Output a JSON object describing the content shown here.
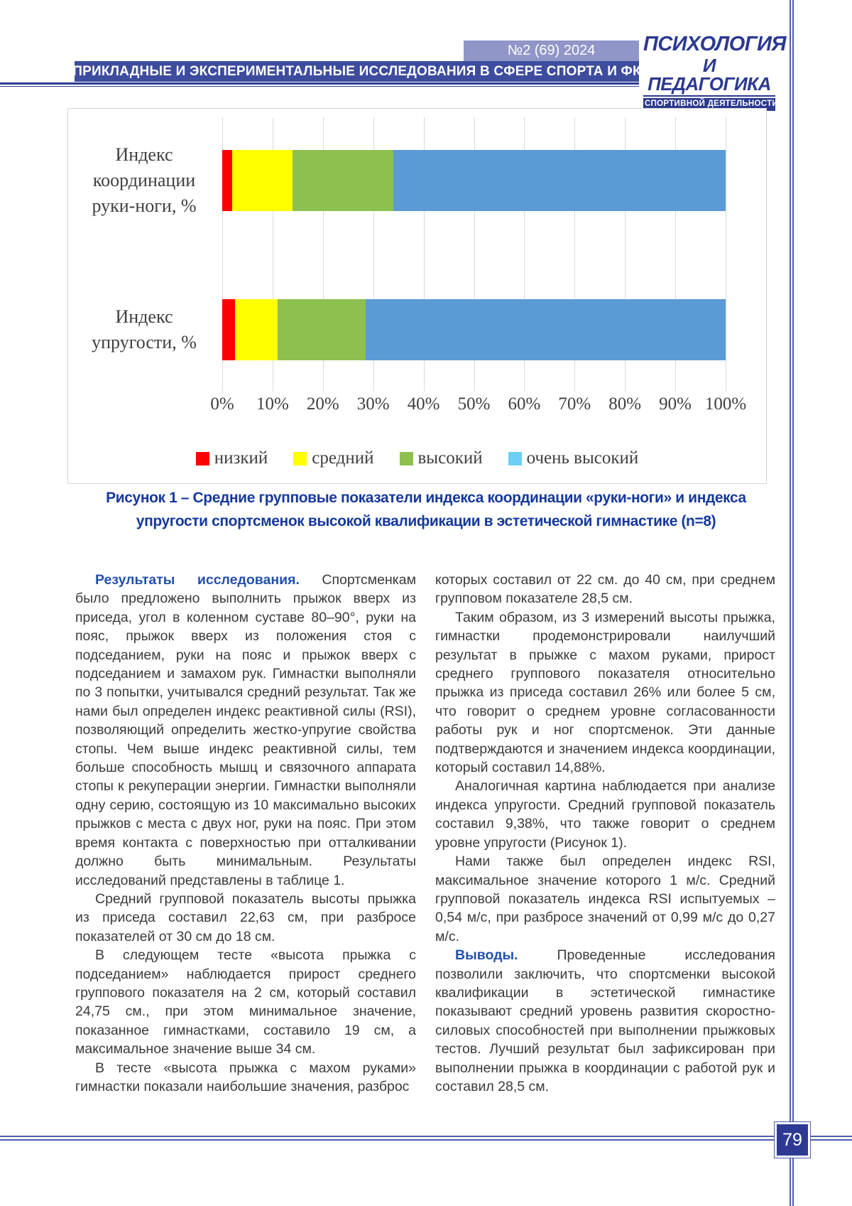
{
  "page": {
    "number": "79"
  },
  "header": {
    "issue": "№2 (69) 2024",
    "section_title": "ПРИКЛАДНЫЕ И ЭКСПЕРИМЕНТАЛЬНЫЕ ИССЛЕДОВАНИЯ В СФЕРЕ СПОРТА И ФК",
    "journal": {
      "line1": "ПСИХОЛОГИЯ",
      "line2": "И ПЕДАГОГИКА",
      "line3": "СПОРТИВНОЙ ДЕЯТЕЛЬНОСТИ"
    }
  },
  "figure": {
    "caption_line1": "Рисунок 1 – Средние групповые показатели индекса координации «руки-ноги» и индекса",
    "caption_line2": "упругости спортсменок высокой квалификации в эстетической гимнастике (n=8)"
  },
  "chart_data": {
    "type": "bar",
    "orientation": "horizontal",
    "stacked": true,
    "categories": [
      "Индекс координации руки-ноги, %",
      "Индекс упругости, %"
    ],
    "category_lines": [
      [
        "Индекс",
        "координации",
        "руки-ноги, %"
      ],
      [
        "Индекс",
        "упругости, %"
      ]
    ],
    "series": [
      {
        "name": "низкий",
        "color": "#ff0000",
        "values": [
          2,
          2.5
        ]
      },
      {
        "name": "средний",
        "color": "#ffff00",
        "values": [
          12,
          8.5
        ]
      },
      {
        "name": "высокий",
        "color": "#8dc04f",
        "values": [
          20,
          17.5
        ]
      },
      {
        "name": "очень высокий",
        "color": "#5b9bd5",
        "legend_color": "#6dcff6",
        "values": [
          66,
          71.5
        ]
      }
    ],
    "x_ticks": [
      "0%",
      "10%",
      "20%",
      "30%",
      "40%",
      "50%",
      "60%",
      "70%",
      "80%",
      "90%",
      "100%"
    ],
    "xlim": [
      0,
      100
    ],
    "grid": true,
    "legend_position": "bottom"
  },
  "article": {
    "columns": [
      {
        "paragraphs": [
          {
            "lead": "Результаты исследования.",
            "text": "Спортсменкам было предложено выполнить прыжок вверх из приседа, угол в коленном суставе 80–90°, руки на пояс, прыжок вверх из положения стоя с подседанием, руки на пояс и прыжок вверх с подседанием и замахом рук. Гимнастки выполняли по 3 попытки, учитывался средний результат. Так же нами был определен индекс реактивной силы (RSI), позволяющий определить жестко-упругие свойства стопы. Чем выше индекс реактивной силы, тем больше способность мышц и связочного аппарата стопы к рекуперации энергии. Гимнастки выполняли одну серию, состоящую из 10 максимально высоких прыжков с места с двух ног, руки на пояс. При этом время контакта с поверхностью при отталкивании должно быть минимальным. Результаты исследований представлены в таблице 1."
          },
          {
            "text": "Средний групповой показатель высоты прыжка из приседа составил 22,63 см, при разбросе показателей от 30 см до 18 см."
          },
          {
            "text": "В следующем тесте «высота прыжка с подседанием» наблюдается прирост среднего группового показателя на 2 см, который составил 24,75 см., при этом минимальное значение, показанное гимнастками, составило 19 см, а максимальное значение выше 34 см."
          },
          {
            "text": "В тесте «высота прыжка с махом руками» гимнастки показали наибольшие значения, разброс"
          }
        ]
      },
      {
        "paragraphs": [
          {
            "noindent": true,
            "text": "которых составил от 22 см. до 40 см, при среднем групповом показателе 28,5 см."
          },
          {
            "text": "Таким образом, из 3 измерений высоты прыжка, гимнастки продемонстрировали наилучший результат в прыжке с махом руками, прирост среднего группового показателя относительно прыжка из приседа составил 26% или более 5 см, что говорит о среднем уровне согласованности работы рук и ног спортсменок. Эти данные подтверждаются и значением индекса координации, который составил 14,88%."
          },
          {
            "text": "Аналогичная картина наблюдается при анализе индекса упругости. Средний групповой показатель составил 9,38%, что также говорит о среднем уровне упругости (Рисунок 1)."
          },
          {
            "text": "Нами также был определен индекс RSI, максимальное значение которого 1 м/с. Средний групповой показатель индекса RSI испытуемых – 0,54 м/с, при разбросе значений от 0,99 м/с до 0,27 м/с."
          },
          {
            "lead": "Выводы.",
            "text": "Проведенные исследования позволили заключить, что спортсменки высокой квалификации в эстетической гимнастике показывают средний уровень развития скоростно-силовых способностей при выполнении прыжковых тестов. Лучший результат был зафиксирован при выполнении прыжка в координации с работой рук и составил 28,5 см."
          }
        ]
      }
    ]
  }
}
